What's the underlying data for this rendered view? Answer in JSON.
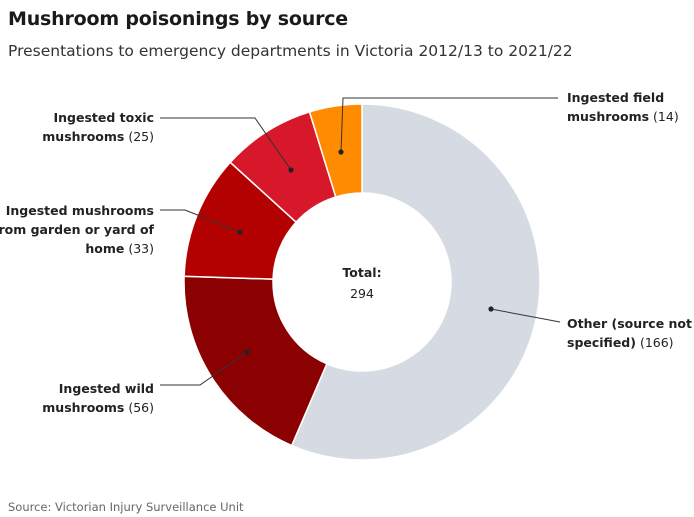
{
  "title": "Mushroom poisonings by source",
  "subtitle": "Presentations to emergency departments in Victoria 2012/13 to 2021/22",
  "source": "Source: Victorian Injury Surveillance Unit",
  "chart_data": {
    "type": "donut",
    "title": "Mushroom poisonings by source",
    "subtitle": "Presentations to emergency departments in Victoria 2012/13 to 2021/22",
    "center_label": "Total:",
    "center_value": "294",
    "total": 294,
    "slices": [
      {
        "name": "Other (source not specified)",
        "label_lines": [
          "Other (source not",
          "specified)"
        ],
        "value": 166,
        "color": "#d6dbe3"
      },
      {
        "name": "Ingested wild mushrooms",
        "label_lines": [
          "Ingested wild",
          "mushrooms"
        ],
        "value": 56,
        "color": "#8b0000"
      },
      {
        "name": "Ingested mushrooms from garden or yard of home",
        "label_lines": [
          "Ingested mushrooms",
          "from garden or yard of",
          "home"
        ],
        "value": 33,
        "color": "#b30000"
      },
      {
        "name": "Ingested toxic mushrooms",
        "label_lines": [
          "Ingested toxic",
          "mushrooms"
        ],
        "value": 25,
        "color": "#d7182a"
      },
      {
        "name": "Ingested field mushrooms",
        "label_lines": [
          "Ingested field",
          "mushrooms"
        ],
        "value": 14,
        "color": "#ff8c00"
      }
    ]
  }
}
